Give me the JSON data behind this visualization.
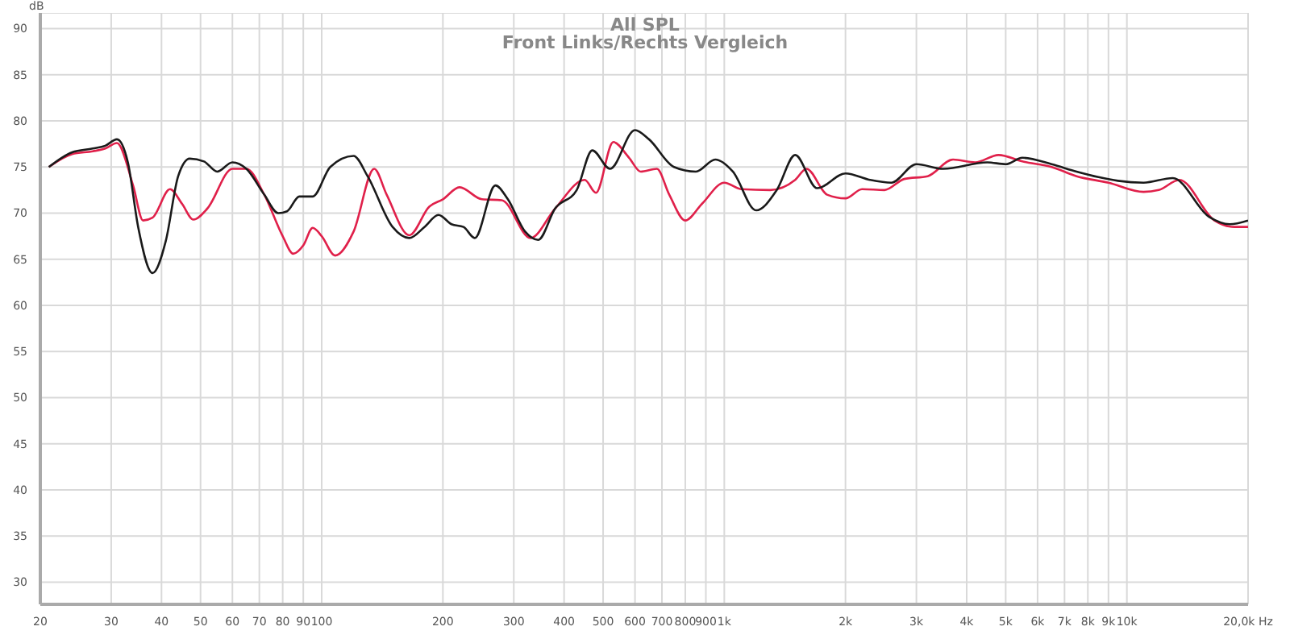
{
  "chart_data": {
    "type": "line",
    "title": "All SPL",
    "subtitle": "Front Links/Rechts Vergleich",
    "ylabel": "dB",
    "xlim": [
      20,
      20000
    ],
    "ylim": [
      27.6,
      91.7
    ],
    "log": "x",
    "grid": true,
    "legend": false,
    "marker": "none",
    "line_style": "solid",
    "xticks": [
      20,
      30,
      40,
      50,
      60,
      70,
      80,
      90,
      100,
      200,
      300,
      400,
      500,
      600,
      700,
      800,
      900,
      {
        "value": 1000,
        "label": "1k"
      },
      {
        "value": 2000,
        "label": "2k"
      },
      {
        "value": 3000,
        "label": "3k"
      },
      {
        "value": 4000,
        "label": "4k"
      },
      {
        "value": 5000,
        "label": "5k"
      },
      {
        "value": 6000,
        "label": "6k"
      },
      {
        "value": 7000,
        "label": "7k"
      },
      {
        "value": 8000,
        "label": "8k"
      },
      {
        "value": 9000,
        "label": "9k"
      },
      {
        "value": 10000,
        "label": "10k"
      },
      {
        "value": 20000,
        "label": "20,0k Hz"
      }
    ],
    "yticks": [
      30,
      35,
      40,
      45,
      50,
      55,
      60,
      65,
      70,
      75,
      80,
      85,
      90
    ],
    "series": [
      {
        "color": "#e0204a",
        "x": [
          21,
          24,
          27,
          29,
          31,
          34,
          36,
          38,
          42,
          45,
          48,
          52,
          60,
          65,
          72,
          80,
          85,
          90,
          95,
          100,
          108,
          120,
          135,
          145,
          165,
          185,
          200,
          220,
          250,
          280,
          330,
          380,
          450,
          480,
          530,
          580,
          620,
          680,
          730,
          800,
          880,
          1000,
          1100,
          1300,
          1500,
          1600,
          1800,
          2000,
          2200,
          2500,
          2800,
          3200,
          3700,
          4200,
          4800,
          5500,
          6500,
          7500,
          9000,
          11000,
          12000,
          13500,
          16500,
          18500,
          20000
        ],
        "values": [
          75,
          76.4,
          76.7,
          77,
          77.6,
          73,
          69.2,
          69.5,
          72.6,
          71,
          69.3,
          70.5,
          74.8,
          74.8,
          72,
          67.5,
          65.6,
          66.5,
          68.4,
          67.5,
          65.4,
          68,
          74.8,
          72,
          67.6,
          70.7,
          71.5,
          72.8,
          71.5,
          71.4,
          67.3,
          70.5,
          73.6,
          72.2,
          77.7,
          76,
          74.5,
          74.8,
          72,
          69.2,
          71,
          73.3,
          72.6,
          72.5,
          73.6,
          74.8,
          72,
          71.6,
          72.6,
          72.5,
          73.7,
          74,
          75.8,
          75.5,
          76.3,
          75.6,
          75,
          74,
          73.3,
          72.3,
          72.5,
          73.6,
          69.2,
          68.5,
          68.5
        ]
      },
      {
        "color": "#1a1a1a",
        "x": [
          21,
          24,
          27,
          29,
          31,
          33,
          35,
          38,
          41,
          44,
          47,
          51,
          55,
          60,
          65,
          72,
          78,
          82,
          88,
          95,
          105,
          120,
          130,
          150,
          165,
          180,
          195,
          210,
          225,
          240,
          270,
          290,
          320,
          345,
          380,
          430,
          470,
          520,
          600,
          650,
          750,
          850,
          950,
          1050,
          1200,
          1350,
          1500,
          1700,
          2000,
          2300,
          2600,
          3000,
          3500,
          4500,
          5000,
          5500,
          6500,
          7500,
          8500,
          9500,
          11000,
          13000,
          16000,
          18000,
          20000
        ],
        "values": [
          75,
          76.6,
          77,
          77.3,
          78,
          75.5,
          68.5,
          63.5,
          67,
          74,
          75.9,
          75.6,
          74.5,
          75.5,
          74.8,
          72,
          70,
          70.2,
          71.8,
          71.8,
          75,
          76.2,
          74,
          68.5,
          67.3,
          68.5,
          69.8,
          68.8,
          68.5,
          67.3,
          73,
          71.5,
          68,
          67.1,
          70.5,
          72.5,
          76.8,
          74.8,
          79,
          78,
          75,
          74.5,
          75.8,
          74.5,
          70.3,
          72.5,
          76.3,
          72.7,
          74.3,
          73.6,
          73.3,
          75.3,
          74.8,
          75.5,
          75.3,
          76,
          75.3,
          74.5,
          73.9,
          73.5,
          73.3,
          73.8,
          69.6,
          68.8,
          69.2
        ]
      }
    ]
  }
}
